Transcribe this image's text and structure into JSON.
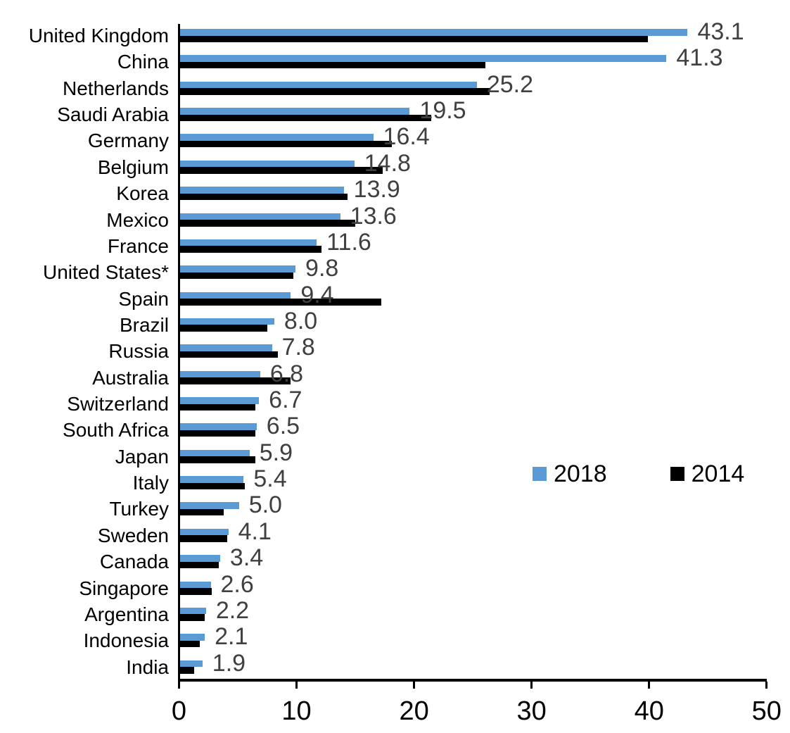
{
  "chart_data": {
    "type": "bar",
    "orientation": "horizontal",
    "title": "",
    "xlabel": "",
    "ylabel": "",
    "xlim": [
      0,
      50
    ],
    "xticks": [
      0,
      10,
      20,
      30,
      40,
      50
    ],
    "xtick_labels": [
      "0",
      "10",
      "20",
      "30",
      "40",
      "50"
    ],
    "grid": false,
    "categories": [
      "United Kingdom",
      "China",
      "Netherlands",
      "Saudi Arabia",
      "Germany",
      "Belgium",
      "Korea",
      "Mexico",
      "France",
      "United States*",
      "Spain",
      "Brazil",
      "Russia",
      "Australia",
      "Switzerland",
      "South Africa",
      "Japan",
      "Italy",
      "Turkey",
      "Sweden",
      "Canada",
      "Singapore",
      "Argentina",
      "Indonesia",
      "India"
    ],
    "series": [
      {
        "name": "2018",
        "color": "#5B9BD5",
        "values": [
          43.1,
          41.3,
          25.2,
          19.5,
          16.4,
          14.8,
          13.9,
          13.6,
          11.6,
          9.8,
          9.4,
          8.0,
          7.8,
          6.8,
          6.7,
          6.5,
          5.9,
          5.4,
          5.0,
          4.1,
          3.4,
          2.6,
          2.2,
          2.1,
          1.9
        ]
      },
      {
        "name": "2014",
        "color": "#000000",
        "values": [
          39.7,
          25.9,
          26.3,
          21.3,
          18.0,
          17.2,
          14.2,
          14.9,
          12.0,
          9.6,
          17.1,
          7.4,
          8.3,
          9.4,
          6.4,
          6.4,
          6.4,
          5.5,
          3.7,
          4.0,
          3.3,
          2.7,
          2.1,
          1.7,
          1.2
        ]
      }
    ],
    "data_labels": {
      "series": "2018",
      "values": [
        "43.1",
        "41.3",
        "25.2",
        "19.5",
        "16.4",
        "14.8",
        "13.9",
        "13.6",
        "11.6",
        "9.8",
        "9.4",
        "8.0",
        "7.8",
        "6.8",
        "6.7",
        "6.5",
        "5.9",
        "5.4",
        "5.0",
        "4.1",
        "3.4",
        "2.6",
        "2.2",
        "2.1",
        "1.9"
      ],
      "color": "#404040"
    },
    "legend": {
      "position": "middle-right",
      "items": [
        {
          "label": "2018",
          "color": "#5B9BD5"
        },
        {
          "label": "2014",
          "color": "#000000"
        }
      ]
    },
    "axis_color": "#000000"
  }
}
